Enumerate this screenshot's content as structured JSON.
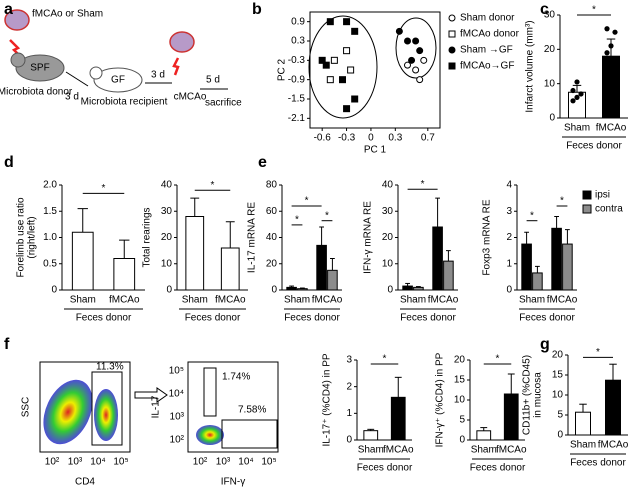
{
  "panel_labels": [
    "a",
    "b",
    "c",
    "d",
    "e",
    "f",
    "g"
  ],
  "diagram": {
    "brain_label": "fMCAo or Sham",
    "donor_box": "SPF",
    "donor": "Microbiota donor",
    "step1": "3 d",
    "recipient_box": "GF",
    "recipient": "Microbiota recipient",
    "step2": "3 d",
    "stroke": "cMCAo",
    "step3": "5 d",
    "end": "sacrifice"
  },
  "flow": {
    "plot1": {
      "ylabel": "SSC",
      "xlabel": "CD4",
      "gate": "11.3%",
      "xticks": [
        "10²",
        "10³",
        "10⁴",
        "10⁵"
      ]
    },
    "plot2": {
      "ylabel": "IL-17",
      "xlabel": "IFN-γ",
      "gate1": "1.74%",
      "gate2": "7.58%",
      "xticks": [
        "10²",
        "10³",
        "10⁴",
        "10⁵"
      ],
      "yticks": [
        "10⁵",
        "10⁴",
        "10³",
        "10²"
      ]
    }
  },
  "chart_data": [
    {
      "type": "scatter",
      "xlabel": "PC 1",
      "ylabel": "PC 2",
      "xlim": [
        -0.75,
        0.85
      ],
      "ylim": [
        -2.4,
        1.2
      ],
      "xticks": [
        -0.6,
        -0.3,
        0,
        0.3,
        0.7
      ],
      "yticks": [
        0.9,
        0.3,
        -0.3,
        -0.9,
        -1.5,
        -2.1
      ],
      "series": [
        {
          "name": "Sham donor",
          "marker": "circle",
          "filled": false,
          "x": [
            0.55,
            0.65,
            0.45,
            0.6
          ],
          "values": [
            -0.6,
            -0.3,
            -0.45,
            -0.9
          ]
        },
        {
          "name": "fMCAo donor",
          "marker": "square",
          "filled": false,
          "x": [
            -0.45,
            -0.25,
            -0.5,
            -0.3
          ],
          "values": [
            -0.3,
            -0.6,
            -0.9,
            0.0
          ]
        },
        {
          "name": "Sham →GF",
          "marker": "circle",
          "filled": true,
          "x": [
            0.35,
            0.45,
            0.55,
            0.6,
            0.5
          ],
          "values": [
            0.6,
            0.3,
            0.3,
            0.0,
            -0.3
          ]
        },
        {
          "name": "fMCAo→GF",
          "marker": "square",
          "filled": true,
          "x": [
            -0.6,
            -0.5,
            -0.3,
            -0.2,
            -0.35,
            -0.2,
            -0.3,
            -0.55
          ],
          "values": [
            -0.3,
            0.9,
            0.9,
            0.6,
            -0.9,
            -1.5,
            -1.8,
            -0.45
          ]
        }
      ]
    },
    {
      "type": "bar",
      "ylabel": [
        "Infarct volume (mm³)"
      ],
      "categories": [
        "Sham",
        "fMCAo"
      ],
      "group_label": "Feces donor",
      "values": [
        7.5,
        18
      ],
      "errors": [
        2,
        5
      ],
      "colors": [
        "#ffffff",
        "#000000"
      ],
      "points": [
        [
          5,
          6,
          7,
          8,
          10.5
        ],
        [
          12,
          14,
          17,
          19,
          21,
          25,
          26
        ]
      ],
      "ylim": [
        0,
        30
      ],
      "yticks": [
        0,
        10,
        20,
        30
      ],
      "annotations": [
        "*"
      ]
    },
    {
      "type": "bar",
      "ylabel": [
        "Forelimb use ratio",
        "(right/left)"
      ],
      "categories": [
        "Sham",
        "fMCAo"
      ],
      "group_label": "Feces donor",
      "values": [
        1.1,
        0.6
      ],
      "errors": [
        0.45,
        0.35
      ],
      "colors": [
        "#ffffff",
        "#ffffff"
      ],
      "ylim": [
        0,
        2
      ],
      "yticks": [
        0,
        0.5,
        {
          "value": 1,
          "label": "1.0"
        },
        1.5,
        {
          "value": 2,
          "label": "2.0"
        }
      ],
      "annotations": [
        "*"
      ]
    },
    {
      "type": "bar",
      "ylabel": [
        "Total rearings"
      ],
      "categories": [
        "Sham",
        "fMCAo"
      ],
      "group_label": "Feces donor",
      "values": [
        28,
        16
      ],
      "errors": [
        7,
        10
      ],
      "colors": [
        "#ffffff",
        "#ffffff"
      ],
      "ylim": [
        0,
        40
      ],
      "yticks": [
        0,
        10,
        20,
        30,
        40
      ],
      "annotations": [
        "*"
      ]
    },
    {
      "type": "bar",
      "ylabel": [
        "IL-17 mRNA RE"
      ],
      "categories": [
        "Sham",
        "fMCAo"
      ],
      "group_label": "Feces donor",
      "series": [
        {
          "name": "ipsi",
          "color": "#000000",
          "values": [
            2,
            34
          ],
          "errors": [
            1,
            14
          ]
        },
        {
          "name": "contra",
          "color": "#8c8c8c",
          "values": [
            1,
            15
          ],
          "errors": [
            0.5,
            9
          ]
        }
      ],
      "ylim": [
        0,
        80
      ],
      "yticks": [
        0,
        20,
        40,
        60,
        80
      ],
      "annotations": [
        "*",
        "*",
        "*"
      ]
    },
    {
      "type": "bar",
      "ylabel": [
        "IFN-γ mRNA RE"
      ],
      "categories": [
        "Sham",
        "fMCAo"
      ],
      "group_label": "Feces donor",
      "series": [
        {
          "name": "ipsi",
          "color": "#000000",
          "values": [
            1.5,
            24
          ],
          "errors": [
            1,
            11
          ]
        },
        {
          "name": "contra",
          "color": "#8c8c8c",
          "values": [
            1,
            11
          ],
          "errors": [
            0.3,
            4
          ]
        }
      ],
      "ylim": [
        0,
        40
      ],
      "yticks": [
        0,
        10,
        20,
        30,
        40
      ],
      "annotations": [
        "*"
      ]
    },
    {
      "type": "bar",
      "ylabel": [
        "Foxp3 mRNA RE"
      ],
      "categories": [
        "Sham",
        "fMCAo"
      ],
      "group_label": "Feces donor",
      "legend": true,
      "series": [
        {
          "name": "ipsi",
          "color": "#000000",
          "values": [
            1.75,
            2.35
          ],
          "errors": [
            0.45,
            0.45
          ]
        },
        {
          "name": "contra",
          "color": "#8c8c8c",
          "values": [
            0.65,
            1.75
          ],
          "errors": [
            0.25,
            0.55
          ]
        }
      ],
      "ylim": [
        0,
        4
      ],
      "yticks": [
        0,
        1,
        2,
        3,
        4
      ],
      "annotations": [
        "*",
        "*"
      ]
    },
    {
      "type": "bar",
      "ylabel": [
        "IL-17⁺ (%CD4) in PP"
      ],
      "categories": [
        "Sham",
        "fMCAo"
      ],
      "group_label": "Feces donor",
      "values": [
        0.35,
        1.6
      ],
      "errors": [
        0.05,
        0.75
      ],
      "colors": [
        "#ffffff",
        "#000000"
      ],
      "ylim": [
        0,
        3
      ],
      "yticks": [
        0,
        1,
        2,
        3
      ],
      "annotations": [
        "*"
      ]
    },
    {
      "type": "bar",
      "ylabel": [
        "IFN-γ⁺ (%CD4) in PP"
      ],
      "categories": [
        "Sham",
        "fMCAo"
      ],
      "group_label": "Feces donor",
      "values": [
        2.3,
        11.5
      ],
      "errors": [
        0.8,
        5
      ],
      "colors": [
        "#ffffff",
        "#000000"
      ],
      "ylim": [
        0,
        20
      ],
      "yticks": [
        0,
        5,
        10,
        15,
        20
      ],
      "annotations": [
        "*"
      ]
    },
    {
      "type": "bar",
      "ylabel": [
        "CD11b+ (%CD45)",
        "in mucosa"
      ],
      "categories": [
        "Sham",
        "fMCAo"
      ],
      "group_label": "Feces donor",
      "values": [
        5.7,
        13.7
      ],
      "errors": [
        2,
        4
      ],
      "colors": [
        "#ffffff",
        "#000000"
      ],
      "ylim": [
        0,
        20
      ],
      "yticks": [
        0,
        5,
        10,
        15,
        20
      ],
      "annotations": [
        "*"
      ]
    }
  ]
}
